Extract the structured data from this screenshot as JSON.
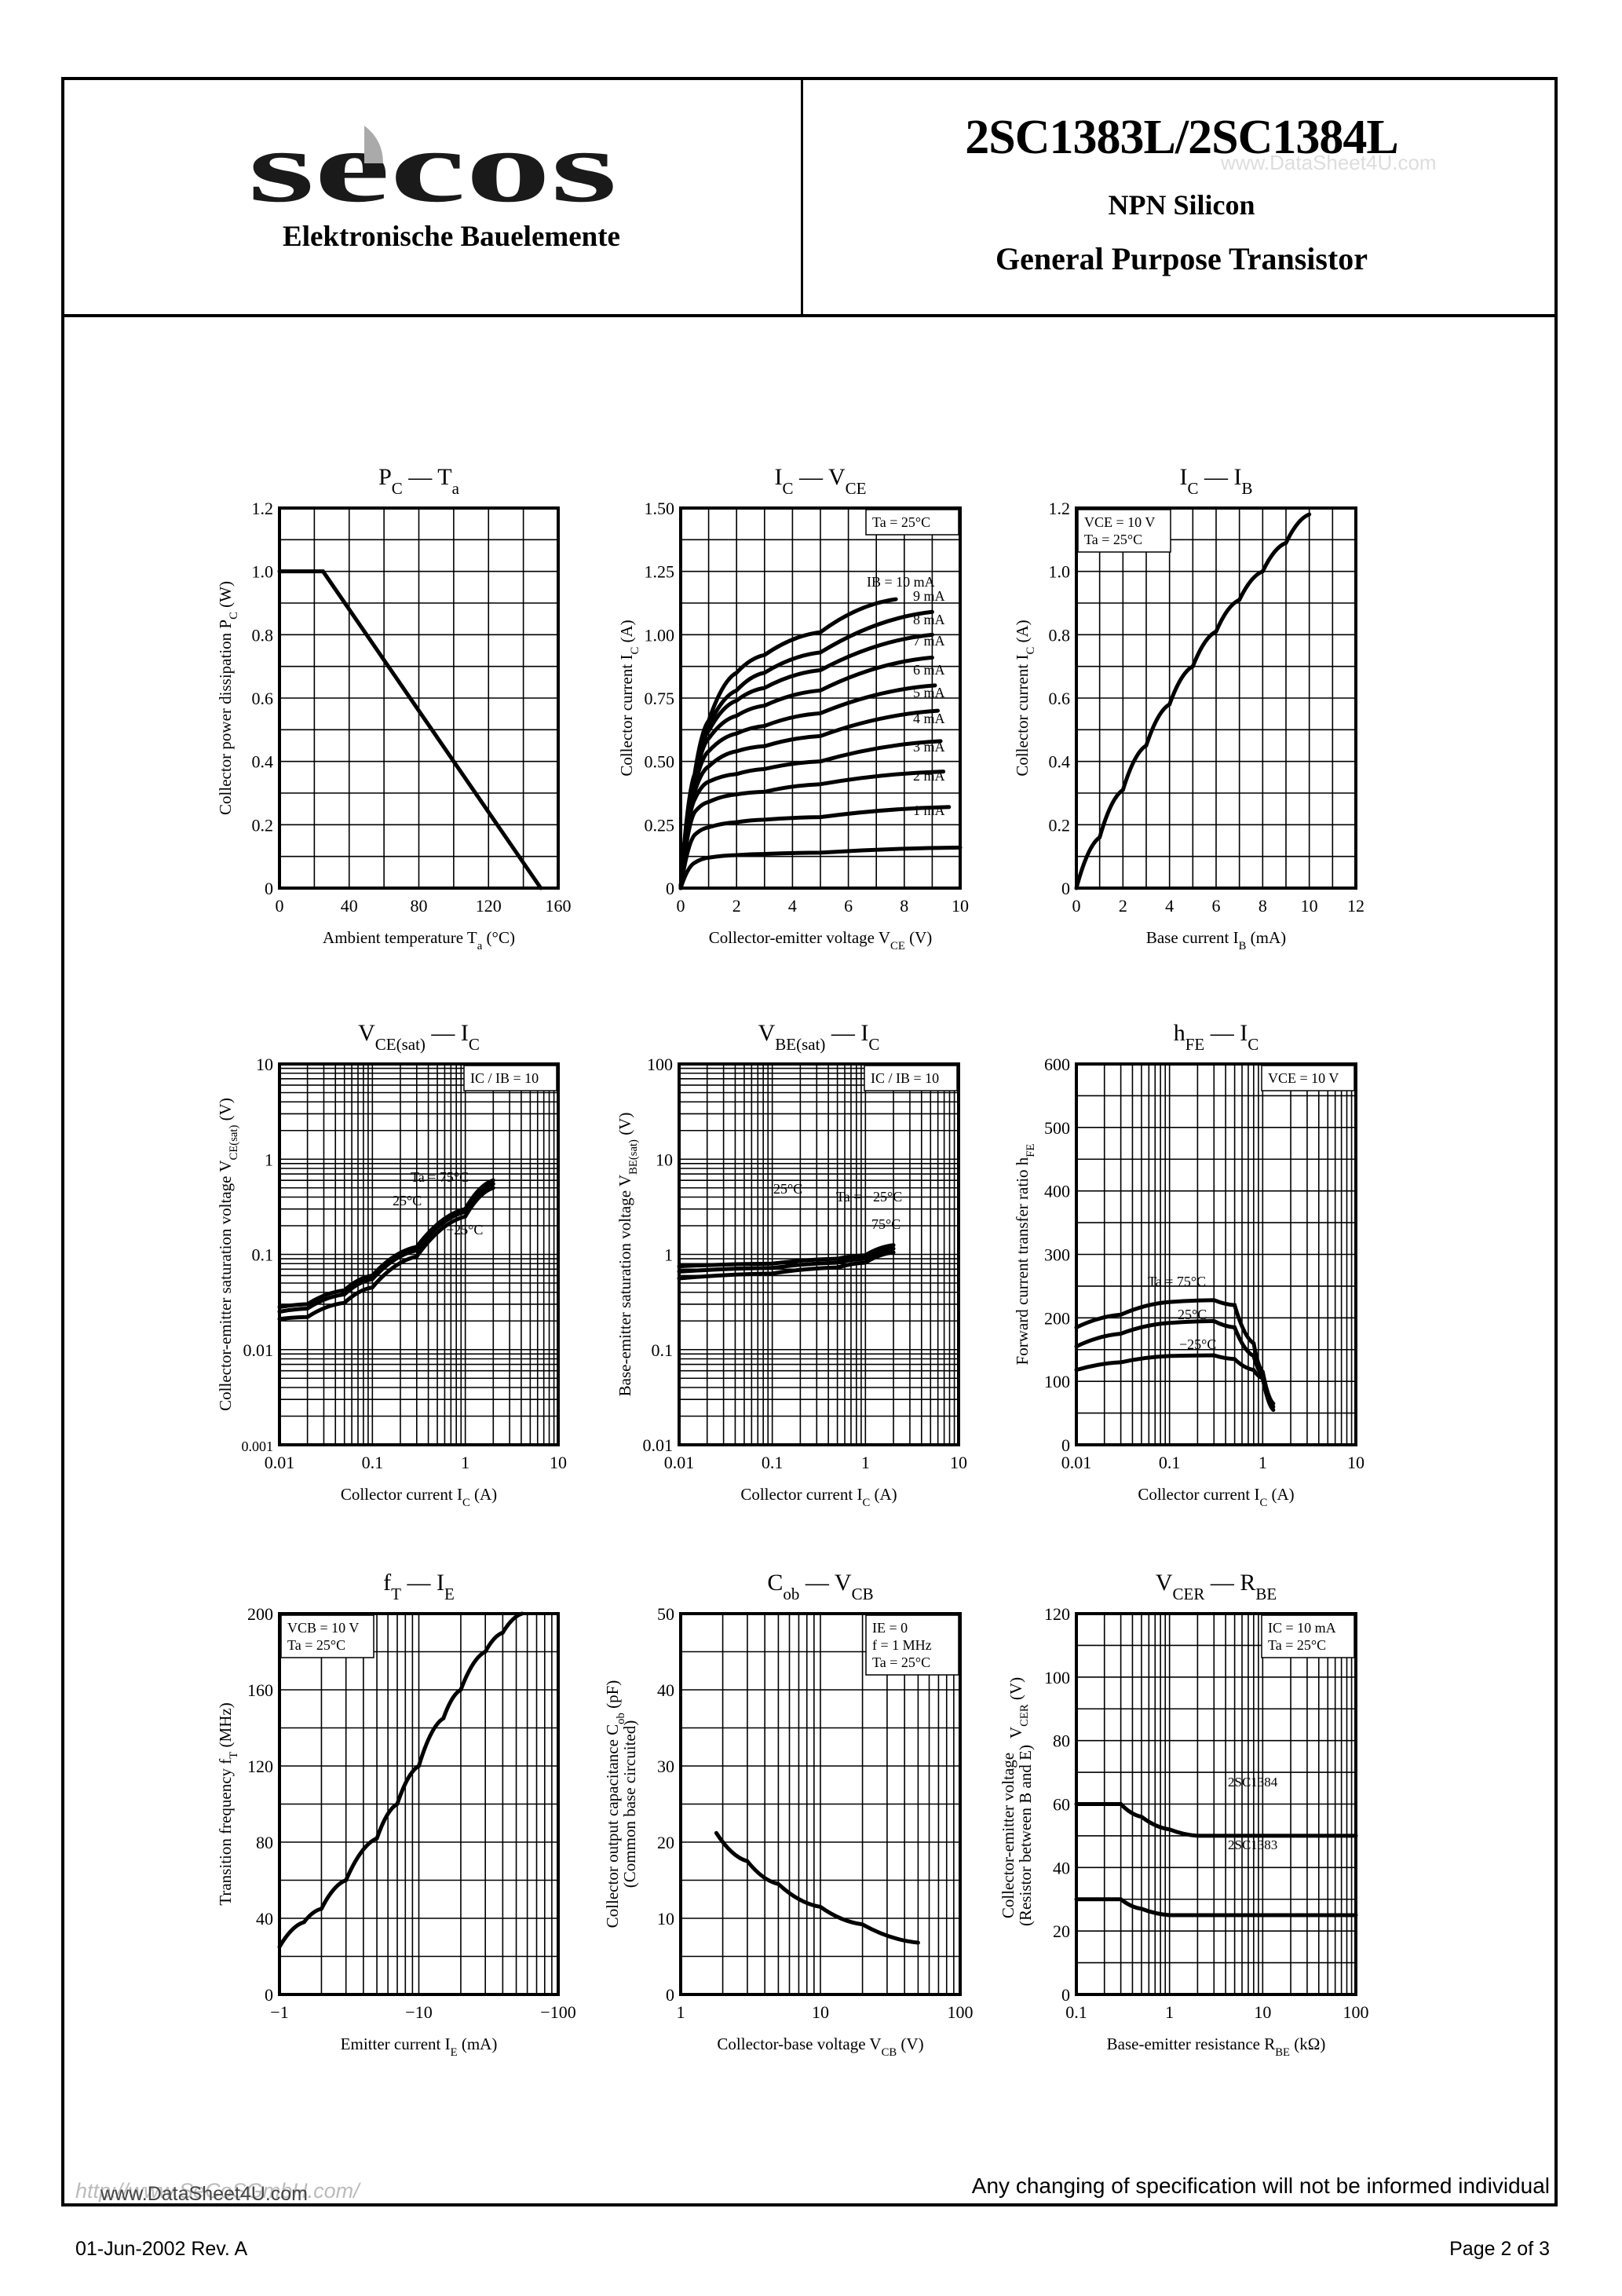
{
  "header": {
    "logo_text": "secos",
    "company": "Elektronische Bauelemente",
    "part_number": "2SC1383L/2SC1384L",
    "watermark": "www.DataSheet4U.com",
    "type": "NPN Silicon",
    "description": "General Purpose Transistor"
  },
  "footer": {
    "url_watermark": "http://www.SeCoSGmbH.com/",
    "url_overlay": "www.DataSheet4U.com",
    "notice": "Any changing of specification will not be informed individual",
    "date_rev": "01-Jun-2002  Rev. A",
    "page": "Page 2 of 3"
  },
  "chart_data": [
    {
      "id": "pc_ta",
      "type": "line",
      "title": "PC — Ta",
      "xlabel": "Ambient temperature Ta (°C)",
      "ylabel": "Collector power dissipation PC (W)",
      "xlim": [
        0,
        160
      ],
      "ylim": [
        0,
        1.2
      ],
      "xscale": "linear",
      "yscale": "linear",
      "xticks": [
        "0",
        "40",
        "80",
        "120",
        "160"
      ],
      "yticks": [
        "0",
        "0.2",
        "0.4",
        "0.6",
        "0.8",
        "1.0",
        "1.2"
      ],
      "series": [
        {
          "name": "PC",
          "x": [
            0,
            25,
            150
          ],
          "y": [
            1.0,
            1.0,
            0
          ]
        }
      ]
    },
    {
      "id": "ic_vce",
      "type": "line",
      "title": "IC — VCE",
      "xlabel": "Collector-emitter voltage VCE (V)",
      "ylabel": "Collector current IC (A)",
      "xlim": [
        0,
        10
      ],
      "ylim": [
        0,
        1.5
      ],
      "xticks": [
        "0",
        "2",
        "4",
        "6",
        "8",
        "10"
      ],
      "yticks": [
        "0",
        "0.25",
        "0.50",
        "0.75",
        "1.00",
        "1.25",
        "1.50"
      ],
      "annotation": "Ta = 25°C",
      "series": [
        {
          "name": "IB = 10 mA",
          "x": [
            0,
            0.5,
            1,
            2,
            3,
            5,
            7.7
          ],
          "y": [
            0,
            0.45,
            0.66,
            0.85,
            0.92,
            1.01,
            1.14
          ]
        },
        {
          "name": "9 mA",
          "x": [
            0,
            0.5,
            1,
            2,
            3,
            5,
            9
          ],
          "y": [
            0,
            0.44,
            0.64,
            0.78,
            0.85,
            0.93,
            1.09
          ]
        },
        {
          "name": "8 mA",
          "x": [
            0,
            0.5,
            1,
            2,
            3,
            5,
            9
          ],
          "y": [
            0,
            0.43,
            0.62,
            0.74,
            0.79,
            0.86,
            1.0
          ]
        },
        {
          "name": "7 mA",
          "x": [
            0,
            0.5,
            1,
            2,
            3,
            5,
            9
          ],
          "y": [
            0,
            0.42,
            0.59,
            0.68,
            0.72,
            0.78,
            0.91
          ]
        },
        {
          "name": "6 mA",
          "x": [
            0,
            0.5,
            1,
            2,
            3,
            5,
            9.1
          ],
          "y": [
            0,
            0.4,
            0.54,
            0.61,
            0.64,
            0.69,
            0.8
          ]
        },
        {
          "name": "5 mA",
          "x": [
            0,
            0.5,
            1,
            2,
            3,
            5,
            9.2
          ],
          "y": [
            0,
            0.38,
            0.48,
            0.54,
            0.56,
            0.6,
            0.7
          ]
        },
        {
          "name": "4 mA",
          "x": [
            0,
            0.5,
            1,
            2,
            3,
            5,
            9.3
          ],
          "y": [
            0,
            0.35,
            0.42,
            0.45,
            0.47,
            0.5,
            0.58
          ]
        },
        {
          "name": "3 mA",
          "x": [
            0,
            0.5,
            1,
            2,
            3,
            5,
            9.4
          ],
          "y": [
            0,
            0.3,
            0.34,
            0.37,
            0.38,
            0.41,
            0.46
          ]
        },
        {
          "name": "2 mA",
          "x": [
            0,
            0.5,
            1,
            2,
            3,
            5,
            9.6
          ],
          "y": [
            0,
            0.21,
            0.24,
            0.26,
            0.27,
            0.28,
            0.32
          ]
        },
        {
          "name": "1 mA",
          "x": [
            0,
            0.5,
            1,
            2,
            3,
            5,
            10
          ],
          "y": [
            0,
            0.1,
            0.12,
            0.13,
            0.135,
            0.14,
            0.16
          ]
        }
      ]
    },
    {
      "id": "ic_ib",
      "type": "line",
      "title": "IC — IB",
      "xlabel": "Base current IB (mA)",
      "ylabel": "Collector current IC (A)",
      "xlim": [
        0,
        12
      ],
      "ylim": [
        0,
        1.2
      ],
      "xticks": [
        "0",
        "2",
        "4",
        "6",
        "8",
        "10",
        "12"
      ],
      "yticks": [
        "0",
        "0.2",
        "0.4",
        "0.6",
        "0.8",
        "1.0",
        "1.2"
      ],
      "annotation": [
        "VCE = 10 V",
        "Ta = 25°C"
      ],
      "series": [
        {
          "name": "IC",
          "x": [
            0,
            1,
            2,
            3,
            4,
            5,
            6,
            7,
            8,
            9,
            10
          ],
          "y": [
            0,
            0.16,
            0.31,
            0.45,
            0.58,
            0.7,
            0.81,
            0.91,
            1.0,
            1.09,
            1.18
          ],
          "dashed_from_x": 8
        }
      ]
    },
    {
      "id": "vcesat_ic",
      "type": "line",
      "title": "VCE(sat) — IC",
      "xlabel": "Collector current IC (A)",
      "ylabel": "Collector-emitter saturation voltage VCE(sat) (V)",
      "xscale": "log",
      "yscale": "log",
      "xlim": [
        0.01,
        10
      ],
      "ylim": [
        0.001,
        10
      ],
      "xticks": [
        "0.01",
        "0.1",
        "1",
        "10"
      ],
      "yticks": [
        "0.001",
        "0.01",
        "0.1",
        "1",
        "10"
      ],
      "annotation": "IC / IB = 10",
      "series": [
        {
          "name": "Ta = 75°C",
          "x": [
            0.01,
            0.02,
            0.05,
            0.1,
            0.3,
            1,
            2
          ],
          "y": [
            0.028,
            0.03,
            0.042,
            0.06,
            0.12,
            0.3,
            0.6
          ]
        },
        {
          "name": "25°C",
          "x": [
            0.01,
            0.02,
            0.05,
            0.1,
            0.3,
            1,
            2
          ],
          "y": [
            0.025,
            0.027,
            0.038,
            0.055,
            0.11,
            0.28,
            0.55
          ]
        },
        {
          "name": "-25°C",
          "x": [
            0.01,
            0.02,
            0.05,
            0.1,
            0.3,
            1,
            2
          ],
          "y": [
            0.021,
            0.022,
            0.031,
            0.045,
            0.095,
            0.25,
            0.5
          ]
        }
      ]
    },
    {
      "id": "vbesat_ic",
      "type": "line",
      "title": "VBE(sat) — IC",
      "xlabel": "Collector current IC (A)",
      "ylabel": "Base-emitter saturation voltage VBE(sat) (V)",
      "xscale": "log",
      "yscale": "log",
      "xlim": [
        0.01,
        10
      ],
      "ylim": [
        0.01,
        100
      ],
      "xticks": [
        "0.01",
        "0.1",
        "1",
        "10"
      ],
      "yticks": [
        "0.01",
        "0.1",
        "1",
        "10",
        "100"
      ],
      "annotation": "IC / IB = 10",
      "series": [
        {
          "name": "Ta = -25°C",
          "x": [
            0.01,
            0.1,
            0.5,
            1,
            2
          ],
          "y": [
            0.75,
            0.8,
            0.9,
            0.98,
            1.25
          ]
        },
        {
          "name": "25°C",
          "x": [
            0.01,
            0.1,
            0.5,
            1,
            2
          ],
          "y": [
            0.66,
            0.72,
            0.82,
            0.9,
            1.15
          ]
        },
        {
          "name": "75°C",
          "x": [
            0.01,
            0.1,
            0.5,
            1,
            2
          ],
          "y": [
            0.56,
            0.63,
            0.73,
            0.82,
            1.05
          ]
        }
      ]
    },
    {
      "id": "hfe_ic",
      "type": "line",
      "title": "hFE — IC",
      "xlabel": "Collector current IC (A)",
      "ylabel": "Forward current transfer ratio hFE",
      "xscale": "log",
      "yscale": "linear",
      "xlim": [
        0.01,
        10
      ],
      "ylim": [
        0,
        600
      ],
      "xticks": [
        "0.01",
        "0.1",
        "1",
        "10"
      ],
      "yticks": [
        "0",
        "100",
        "200",
        "300",
        "400",
        "500",
        "600"
      ],
      "annotation": "VCE = 10 V",
      "series": [
        {
          "name": "Ta = 75°C",
          "x": [
            0.01,
            0.03,
            0.1,
            0.3,
            0.5,
            0.8,
            1,
            1.3
          ],
          "y": [
            185,
            205,
            225,
            228,
            220,
            160,
            115,
            65
          ]
        },
        {
          "name": "25°C",
          "x": [
            0.01,
            0.03,
            0.1,
            0.3,
            0.5,
            0.8,
            1,
            1.3
          ],
          "y": [
            155,
            175,
            192,
            195,
            185,
            140,
            110,
            60
          ]
        },
        {
          "name": "-25°C",
          "x": [
            0.01,
            0.03,
            0.1,
            0.3,
            0.5,
            0.8,
            1,
            1.3
          ],
          "y": [
            118,
            130,
            140,
            141,
            135,
            118,
            105,
            55
          ]
        }
      ]
    },
    {
      "id": "ft_ie",
      "type": "line",
      "title": "fT — IE",
      "xlabel": "Emitter current IE (mA)",
      "ylabel": "Transition frequency fT (MHz)",
      "xscale": "log",
      "yscale": "linear",
      "xlim": [
        -1,
        -100
      ],
      "ylim": [
        0,
        200
      ],
      "xticks": [
        "−1",
        "−10",
        "−100"
      ],
      "yticks": [
        "0",
        "40",
        "80",
        "120",
        "160",
        "200"
      ],
      "annotation": [
        "VCB = 10 V",
        "Ta = 25°C"
      ],
      "series": [
        {
          "name": "fT",
          "x": [
            -1,
            -1.5,
            -2,
            -3,
            -5,
            -7,
            -10,
            -15,
            -20,
            -30,
            -40,
            -55
          ],
          "y": [
            25,
            38,
            45,
            60,
            82,
            100,
            120,
            145,
            160,
            180,
            190,
            200
          ]
        }
      ]
    },
    {
      "id": "cob_vcb",
      "type": "line",
      "title": "Cob — VCB",
      "xlabel": "Collector-base voltage VCB (V)",
      "ylabel": "Collector output capacitance Cob (pF) (Common base circuited)",
      "xscale": "log",
      "yscale": "linear",
      "xlim": [
        1,
        100
      ],
      "ylim": [
        0,
        50
      ],
      "xticks": [
        "1",
        "10",
        "100"
      ],
      "yticks": [
        "0",
        "10",
        "20",
        "30",
        "40",
        "50"
      ],
      "annotation": [
        "IE = 0",
        "f = 1 MHz",
        "Ta = 25°C"
      ],
      "series": [
        {
          "name": "Cob",
          "x": [
            1.8,
            3,
            5,
            10,
            20,
            50
          ],
          "y": [
            21.2,
            17.5,
            14.5,
            11.5,
            9.2,
            6.8
          ]
        }
      ]
    },
    {
      "id": "vcer_rbe",
      "type": "line",
      "title": "VCER — RBE",
      "xlabel": "Base-emitter resistance RBE (kΩ)",
      "ylabel": "Collector-emitter voltage (Resistor between B and E) VCER (V)",
      "xscale": "log",
      "yscale": "linear",
      "xlim": [
        0.1,
        100
      ],
      "ylim": [
        0,
        120
      ],
      "xticks": [
        "0.1",
        "1",
        "10",
        "100"
      ],
      "yticks": [
        "0",
        "20",
        "40",
        "60",
        "80",
        "100",
        "120"
      ],
      "annotation": [
        "IC = 10 mA",
        "Ta = 25°C"
      ],
      "series": [
        {
          "name": "2SC1384",
          "x": [
            0.1,
            0.3,
            0.5,
            1,
            2,
            100
          ],
          "y": [
            60,
            60,
            56,
            52,
            50,
            50
          ]
        },
        {
          "name": "2SC1383",
          "x": [
            0.1,
            0.3,
            0.5,
            1,
            100
          ],
          "y": [
            30,
            30,
            27,
            25,
            25
          ]
        }
      ]
    }
  ],
  "charts_text": {
    "pc_ta": {
      "t1": "P",
      "s1": "C",
      "t2": "T",
      "s2": "a",
      "ylabel": "Collector power dissipation  P",
      "ysub": "C",
      "yunit": " (W)",
      "xlabel": "Ambient temperature  T",
      "xsub": "a",
      "xunit": "  (°C)"
    },
    "ic_vce": {
      "t1": "I",
      "s1": "C",
      "t2": "V",
      "s2": "CE",
      "ylabel": "Collector current  I",
      "ysub": "C",
      "yunit": " (A)",
      "xlabel": "Collector-emitter voltage  V",
      "xsub": "CE",
      "xunit": "  (V)",
      "note": "Ta = 25°C",
      "ib_label": "IB = 10 mA",
      "labels": [
        "9 mA",
        "8 mA",
        "7 mA",
        "6 mA",
        "5 mA",
        "4 mA",
        "3 mA",
        "2 mA",
        "1 mA"
      ]
    },
    "ic_ib": {
      "t1": "I",
      "s1": "C",
      "t2": "I",
      "s2": "B",
      "ylabel": "Collector current  I",
      "ysub": "C",
      "yunit": " (A)",
      "xlabel": "Base current  I",
      "xsub": "B",
      "xunit": "  (mA)",
      "note1": "VCE = 10 V",
      "note2": "Ta = 25°C"
    },
    "vcesat": {
      "t1": "V",
      "s1": "CE(sat)",
      "t2": "I",
      "s2": "C",
      "ylabel": "Collector-emitter saturation voltage  V",
      "ysub": "CE(sat)",
      "yunit": "  (V)",
      "xlabel": "Collector current  I",
      "xsub": "C",
      "xunit": "  (A)",
      "note": "IC / IB = 10",
      "l1": "Ta = 75°C",
      "l2": "25°C",
      "l3": "−25°C"
    },
    "vbesat": {
      "t1": "V",
      "s1": "BE(sat)",
      "t2": "I",
      "s2": "C",
      "ylabel": "Base-emitter saturation voltage  V",
      "ysub": "BE(sat)",
      "yunit": "  (V)",
      "xlabel": "Collector current  I",
      "xsub": "C",
      "xunit": "  (A)",
      "note": "IC / IB = 10",
      "l1": "25°C",
      "l2": "Ta = −25°C",
      "l3": "75°C"
    },
    "hfe": {
      "t1": "h",
      "s1": "FE",
      "t2": "I",
      "s2": "C",
      "ylabel": "Forward current transfer ratio  h",
      "ysub": "FE",
      "xlabel": "Collector current  I",
      "xsub": "C",
      "xunit": "  (A)",
      "note": "VCE = 10 V",
      "l1": "Ta = 75°C",
      "l2": "25°C",
      "l3": "−25°C"
    },
    "ft": {
      "t1": "f",
      "s1": "T",
      "t2": "I",
      "s2": "E",
      "ylabel": "Transition frequency  f",
      "ysub": "T",
      "yunit": "  (MHz)",
      "xlabel": "Emitter current  I",
      "xsub": "E",
      "xunit": "  (mA)",
      "note1": "VCB = 10 V",
      "note2": "Ta = 25°C"
    },
    "cob": {
      "t1": "C",
      "s1": "ob",
      "t2": "V",
      "s2": "CB",
      "ylabel": "Collector output capacitance  C",
      "ysub": "ob",
      "yunit": "  (pF)",
      "ylabel2": "(Common base circuited)",
      "xlabel": "Collector-base voltage  V",
      "xsub": "CB",
      "xunit": "  (V)",
      "note1": "IE = 0",
      "note2": "f = 1 MHz",
      "note3": "Ta = 25°C"
    },
    "vcer": {
      "t1": "V",
      "s1": "CER",
      "t2": "R",
      "s2": "BE",
      "ylabel": "Collector-emitter voltage",
      "ylabel2": "(Resistor between B and E)",
      "ylabel3": "V",
      "ysub": "CER",
      "yunit": "  (V)",
      "xlabel": "Base-emitter resistance  R",
      "xsub": "BE",
      "xunit": "  (kΩ)",
      "note1": "IC = 10 mA",
      "note2": "Ta = 25°C",
      "l1": "2SC1384",
      "l2": "2SC1383"
    }
  }
}
